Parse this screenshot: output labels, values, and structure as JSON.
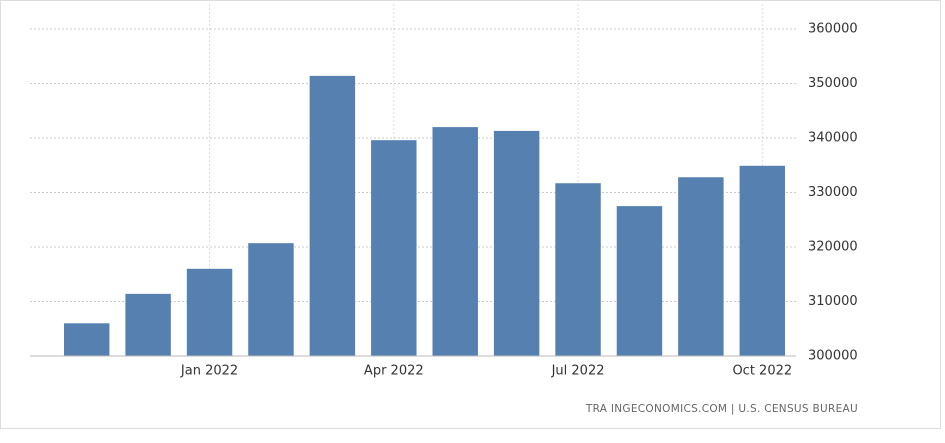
{
  "chart_data": {
    "type": "bar",
    "categories": [
      null,
      null,
      "Jan 2022",
      null,
      null,
      "Apr 2022",
      null,
      null,
      "Jul 2022",
      null,
      null,
      "Oct 2022"
    ],
    "values": [
      306000,
      311400,
      316000,
      320700,
      351400,
      339600,
      342000,
      341300,
      331700,
      327500,
      332800,
      334900
    ],
    "color": "#5580b0",
    "ylim": [
      300000,
      360000
    ],
    "yticks": [
      300000,
      310000,
      320000,
      330000,
      340000,
      350000,
      360000
    ],
    "grid": true,
    "source": "TRA INGECONOMICS.COM | U.S. CENSUS BUREAU"
  }
}
